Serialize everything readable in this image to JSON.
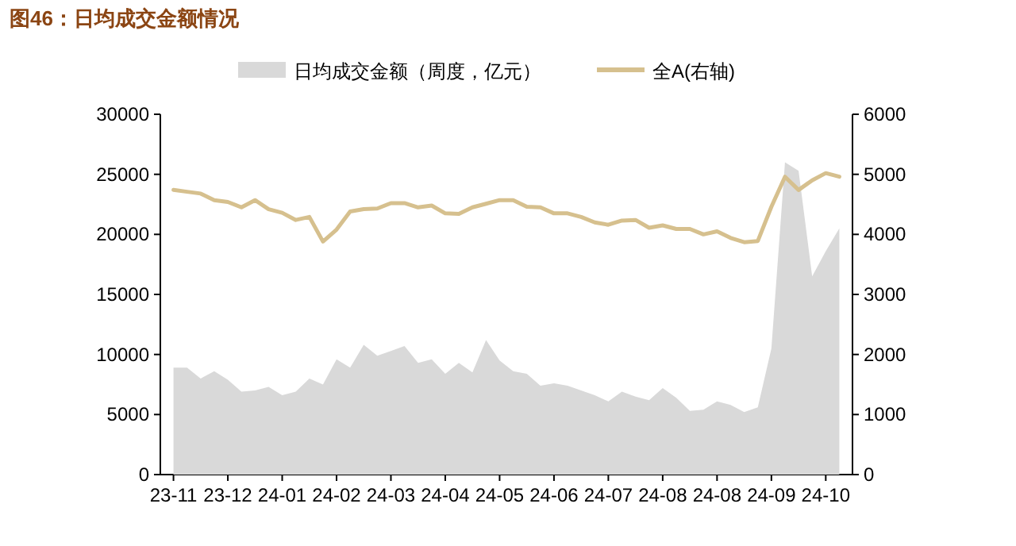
{
  "chart_data": {
    "type": "area",
    "title": "图46：日均成交金额情况",
    "categories": [
      "23-11",
      null,
      null,
      null,
      "23-12",
      null,
      null,
      null,
      "24-01",
      null,
      null,
      null,
      "24-02",
      null,
      null,
      null,
      "24-03",
      null,
      null,
      null,
      "24-04",
      null,
      null,
      null,
      "24-05",
      null,
      null,
      null,
      "24-06",
      null,
      null,
      null,
      "24-07",
      null,
      null,
      null,
      "24-08",
      null,
      null,
      null,
      "24-08",
      null,
      null,
      null,
      "24-09",
      null,
      null,
      null,
      "24-10",
      null
    ],
    "series": [
      {
        "name": "日均成交金额（周度，亿元）",
        "type": "area",
        "color": "#d9d9d9",
        "values": [
          8900,
          8900,
          8000,
          8600,
          7900,
          6900,
          7000,
          7300,
          6600,
          6900,
          8000,
          7500,
          9600,
          8900,
          10800,
          9900,
          10300,
          10700,
          9300,
          9600,
          8400,
          9300,
          8500,
          11200,
          9500,
          8600,
          8400,
          7400,
          7600,
          7400,
          7000,
          6600,
          6100,
          6900,
          6500,
          6200,
          7200,
          6400,
          5300,
          5400,
          6100,
          5800,
          5200,
          5600,
          10500,
          26000,
          25300,
          16500,
          18600,
          20500
        ]
      },
      {
        "name": "全A(右轴)",
        "type": "line",
        "axis": "y2",
        "color": "#d6c08e",
        "values": [
          4740,
          4710,
          4680,
          4570,
          4540,
          4450,
          4570,
          4420,
          4360,
          4240,
          4290,
          3880,
          4080,
          4380,
          4420,
          4430,
          4520,
          4520,
          4450,
          4480,
          4350,
          4340,
          4450,
          4510,
          4570,
          4570,
          4460,
          4450,
          4350,
          4350,
          4290,
          4200,
          4160,
          4230,
          4240,
          4110,
          4150,
          4090,
          4090,
          4000,
          4050,
          3940,
          3870,
          3890,
          4460,
          4960,
          4740,
          4900,
          5020,
          4960
        ]
      }
    ],
    "ylim": [
      0,
      30000
    ],
    "yticks": [
      0,
      5000,
      10000,
      15000,
      20000,
      25000,
      30000
    ],
    "y2lim": [
      0,
      6000
    ],
    "y2ticks": [
      0,
      1000,
      2000,
      3000,
      4000,
      5000,
      6000
    ],
    "legend": "top",
    "grid": false
  }
}
